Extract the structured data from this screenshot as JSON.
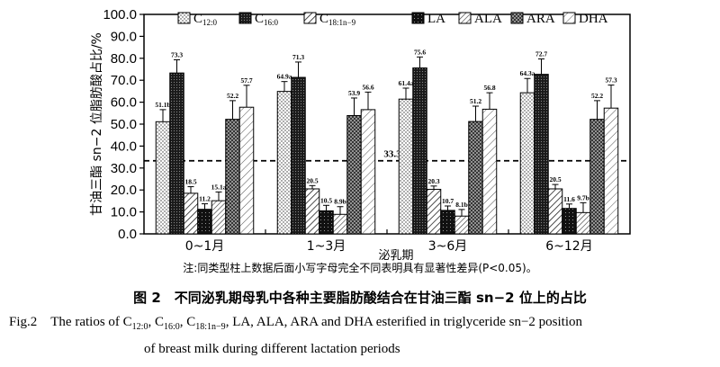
{
  "chart_data": {
    "type": "bar",
    "categories": [
      "0~1月",
      "1~3月",
      "3~6月",
      "6~12月"
    ],
    "xlabel": "泌乳期",
    "ylabel": "甘油三酯 sn−2 位脂肪酸占比/%",
    "ylim": [
      0,
      100
    ],
    "yticks": [
      "0.0",
      "10.0",
      "20.0",
      "30.0",
      "40.0",
      "50.0",
      "60.0",
      "70.0",
      "80.0",
      "90.0",
      "100.0"
    ],
    "reference_line": {
      "value": 33.3,
      "label": "33.3"
    },
    "legend_placement": "top",
    "series": [
      {
        "name": "C12:0",
        "base": "C",
        "sub": "12:0",
        "values": [
          51.1,
          64.9,
          61.4,
          64.3
        ],
        "errors": [
          5.5,
          4.5,
          5.0,
          6.5
        ],
        "labels": [
          "51.1b",
          "64.9a",
          "61.4a",
          "64.3a"
        ],
        "pattern": "dots"
      },
      {
        "name": "C16:0",
        "base": "C",
        "sub": "16:0",
        "values": [
          73.3,
          71.3,
          75.6,
          72.7
        ],
        "errors": [
          6.0,
          7.0,
          5.0,
          7.0
        ],
        "labels": [
          "73.3",
          "71.3",
          "75.6",
          "72.7"
        ],
        "pattern": "dense"
      },
      {
        "name": "C18:1n-9",
        "base": "C",
        "sub": "18:1n−9",
        "values": [
          18.5,
          20.5,
          20.3,
          20.5
        ],
        "errors": [
          3.0,
          1.5,
          1.5,
          2.0
        ],
        "labels": [
          "18.5",
          "20.5",
          "20.3",
          "20.5"
        ],
        "pattern": "diag"
      },
      {
        "name": "LA",
        "base": "LA",
        "sub": "",
        "values": [
          11.2,
          10.5,
          10.7,
          11.6
        ],
        "errors": [
          2.5,
          2.5,
          2.0,
          2.0
        ],
        "labels": [
          "11.2",
          "10.5",
          "10.7",
          "11.6"
        ],
        "pattern": "darkgrid"
      },
      {
        "name": "ALA",
        "base": "ALA",
        "sub": "",
        "values": [
          15.1,
          8.9,
          8.1,
          9.7
        ],
        "errors": [
          4.0,
          3.5,
          3.0,
          4.5
        ],
        "labels": [
          "15.1a",
          "8.9b",
          "8.1b",
          "9.7b"
        ],
        "pattern": "diagdense"
      },
      {
        "name": "ARA",
        "base": "ARA",
        "sub": "",
        "values": [
          52.2,
          53.9,
          51.2,
          52.2
        ],
        "errors": [
          8.5,
          8.0,
          7.0,
          8.5
        ],
        "labels": [
          "52.2",
          "53.9",
          "51.2",
          "52.2"
        ],
        "pattern": "cross"
      },
      {
        "name": "DHA",
        "base": "DHA",
        "sub": "",
        "values": [
          57.7,
          56.6,
          56.8,
          57.3
        ],
        "errors": [
          10.0,
          8.0,
          7.5,
          10.5
        ],
        "labels": [
          "57.7",
          "56.6",
          "56.8",
          "57.3"
        ],
        "pattern": "diaglight"
      }
    ]
  },
  "note": "注:同类型柱上数据后面小写字母完全不同表明具有显著性差异(P<0.05)。",
  "caption_cn": "图 2　不同泌乳期母乳中各种主要脂肪酸结合在甘油三酯 sn−2 位上的占比",
  "caption_en": {
    "prefix": "Fig.2　The ratios of ",
    "c12": "C",
    "c12_sub": "12:0",
    "c16": "C",
    "c16_sub": "16:0",
    "c18": "C",
    "c18_sub": "18:1n−9",
    "rest": ", LA, ALA, ARA and DHA esterified in triglyceride sn−2 position",
    "line2": "of breast milk during different lactation periods"
  }
}
